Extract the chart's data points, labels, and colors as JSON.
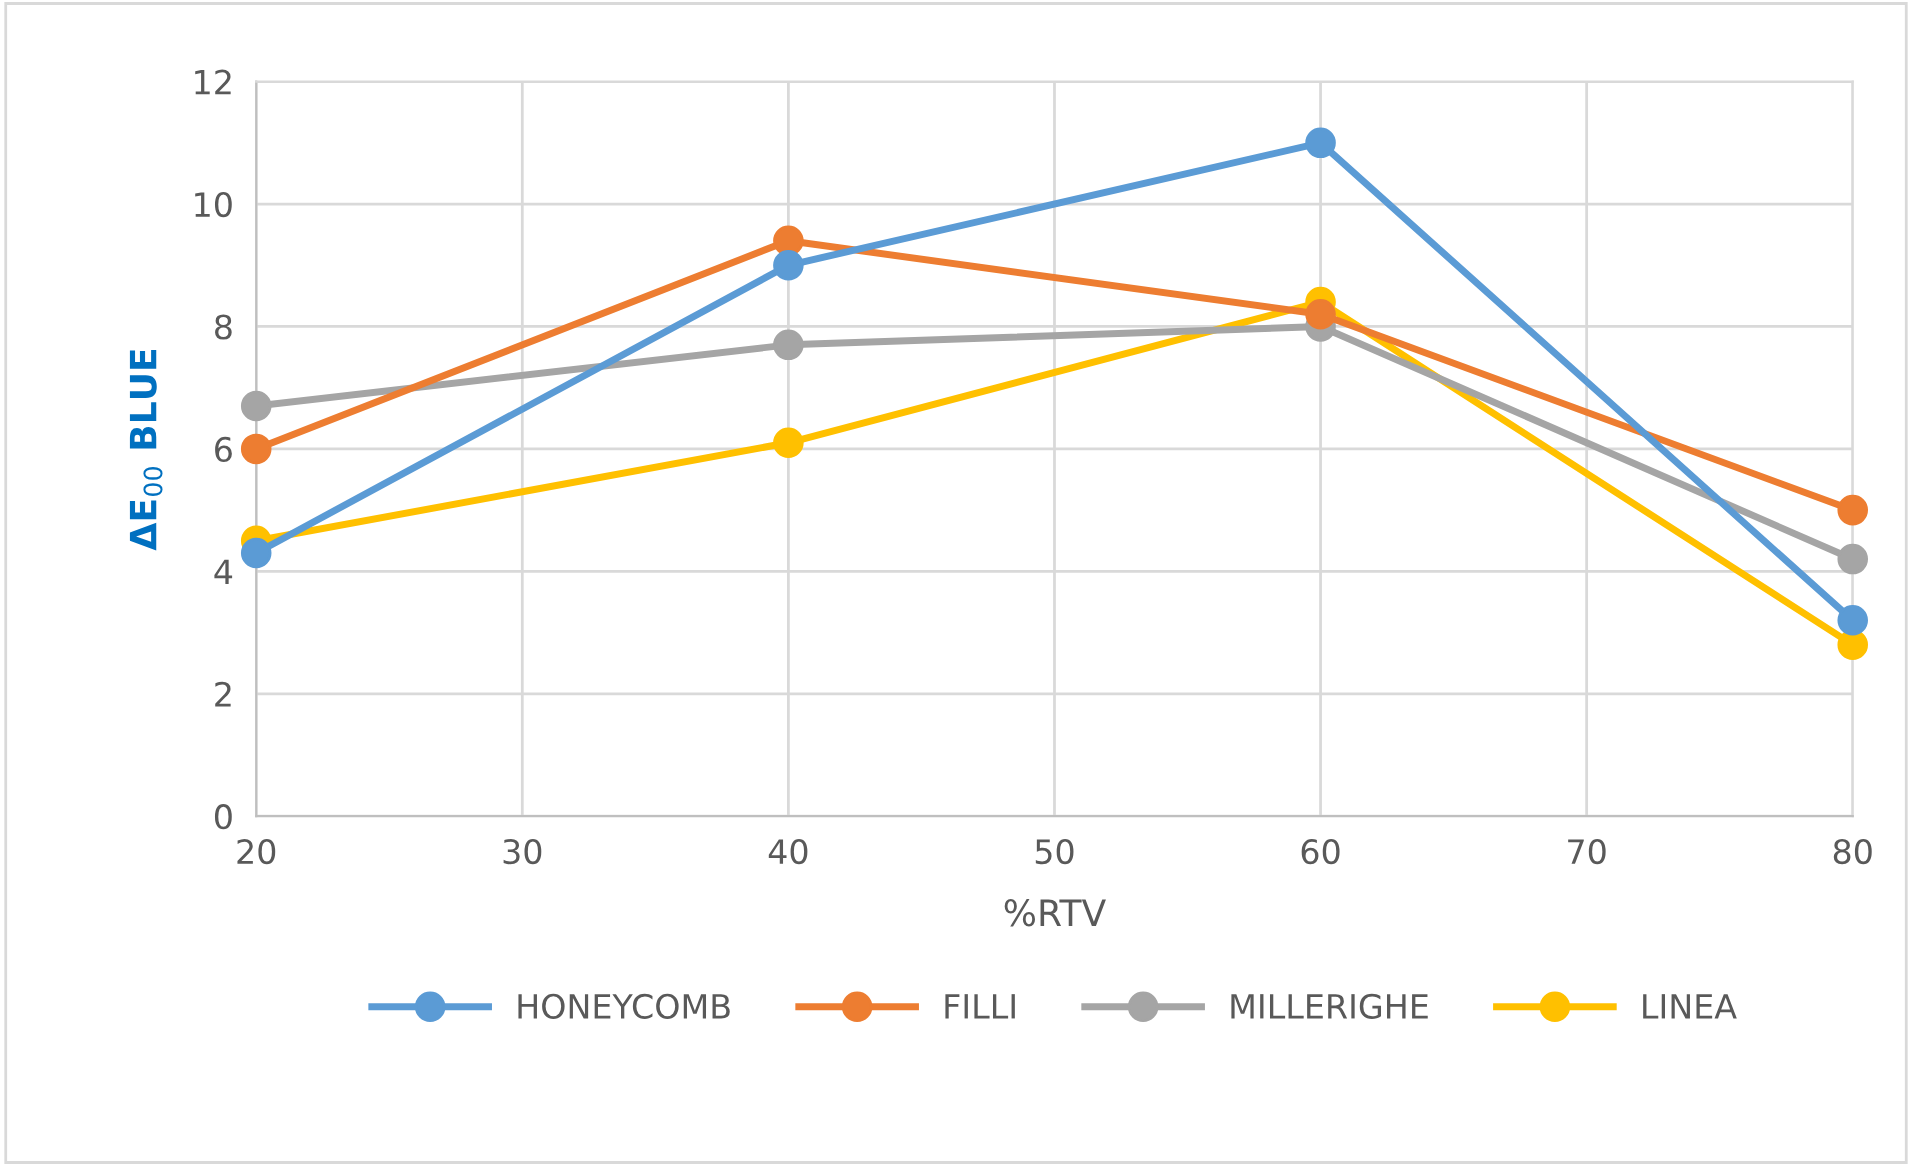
{
  "chart_data": {
    "type": "line",
    "xlabel": "%RTV",
    "ylabel": "ΔE$_{00}$ BLUE",
    "x": [
      20,
      40,
      60,
      80
    ],
    "series": [
      {
        "name": "HONEYCOMB",
        "color": "#5b9bd5",
        "values": [
          4.3,
          9.0,
          11.0,
          3.2
        ]
      },
      {
        "name": "FILLI",
        "color": "#ed7d31",
        "values": [
          6.0,
          9.4,
          8.2,
          5.0
        ]
      },
      {
        "name": "MILLERIGHE",
        "color": "#a5a5a5",
        "values": [
          6.7,
          7.7,
          8.0,
          4.2
        ]
      },
      {
        "name": "LINEA",
        "color": "#ffc000",
        "values": [
          4.5,
          6.1,
          8.4,
          2.8
        ]
      }
    ],
    "xlim": [
      20,
      80
    ],
    "xticks": [
      20,
      30,
      40,
      50,
      60,
      70,
      80
    ],
    "ylim": [
      0,
      12
    ],
    "yticks": [
      0,
      2,
      4,
      6,
      8,
      10,
      12
    ],
    "grid": true,
    "legend": "bottom",
    "marker": "circle",
    "line_style": "solid"
  }
}
